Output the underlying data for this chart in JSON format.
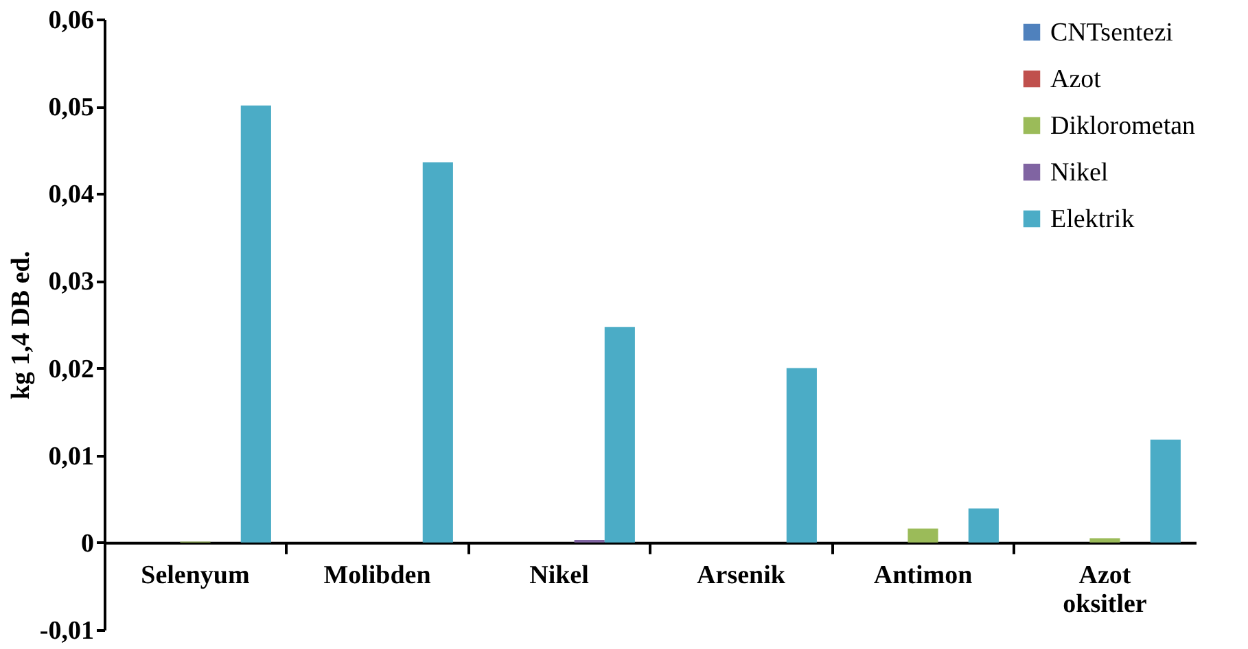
{
  "chart_data": {
    "type": "bar",
    "ylabel": "kg  1,4 DB ed.",
    "categories": [
      "Selenyum",
      "Molibden",
      "Nikel",
      "Arsenik",
      "Antimon",
      "Azot oksitler"
    ],
    "series": [
      {
        "name": "CNTsentezi",
        "color": "#4f81bd",
        "values": [
          0,
          0,
          0,
          0,
          0,
          0
        ]
      },
      {
        "name": "Azot",
        "color": "#c0504d",
        "values": [
          0,
          0,
          0,
          0,
          0,
          0
        ]
      },
      {
        "name": "Diklorometan",
        "color": "#9bbb59",
        "values": [
          0.0001,
          0,
          0,
          0,
          0.0016,
          0.0005
        ]
      },
      {
        "name": "Nikel",
        "color": "#8064a2",
        "values": [
          0,
          0,
          0.0003,
          0,
          0,
          0
        ]
      },
      {
        "name": "Elektrik",
        "color": "#4bacc6",
        "values": [
          0.0501,
          0.0436,
          0.0247,
          0.02,
          0.0039,
          0.0118
        ]
      }
    ],
    "ylim": [
      -0.01,
      0.06
    ],
    "yticks": [
      {
        "value": -0.01,
        "label": "-0,01"
      },
      {
        "value": 0,
        "label": "0"
      },
      {
        "value": 0.01,
        "label": "0,01"
      },
      {
        "value": 0.02,
        "label": "0,02"
      },
      {
        "value": 0.03,
        "label": "0,03"
      },
      {
        "value": 0.04,
        "label": "0,04"
      },
      {
        "value": 0.05,
        "label": "0,05"
      },
      {
        "value": 0.06,
        "label": "0,06"
      }
    ],
    "grid": false,
    "legend": "top right"
  }
}
